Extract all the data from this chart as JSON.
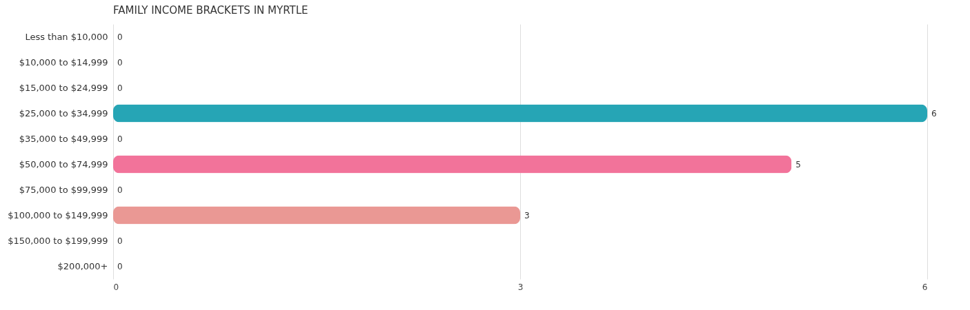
{
  "chart_data": {
    "type": "bar",
    "orientation": "horizontal",
    "title": "FAMILY INCOME BRACKETS IN MYRTLE",
    "categories": [
      "Less than $10,000",
      "$10,000 to $14,999",
      "$15,000 to $24,999",
      "$25,000 to $34,999",
      "$35,000 to $49,999",
      "$50,000 to $74,999",
      "$75,000 to $99,999",
      "$100,000 to $149,999",
      "$150,000 to $199,999",
      "$200,000+"
    ],
    "values": [
      0,
      0,
      0,
      6,
      0,
      5,
      0,
      3,
      0,
      0
    ],
    "colors": [
      "#f4b3b0",
      "#aac8ec",
      "#d4b0d4",
      "#26a5b5",
      "#b6bfee",
      "#f2739a",
      "#fccd9f",
      "#ea9894",
      "#a9c8ee",
      "#d4b1d8"
    ],
    "xlim": [
      0,
      6
    ],
    "xticks": [
      0,
      3,
      6
    ],
    "grid": "x",
    "data_labels": true
  }
}
